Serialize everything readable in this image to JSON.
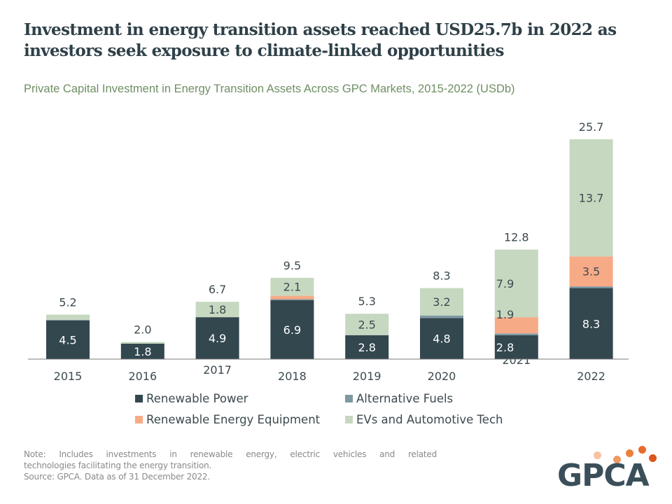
{
  "header": {
    "title": "Investment in energy transition assets reached USD25.7b in 2022 as investors seek exposure to climate-linked opportunities",
    "subtitle": "Private Capital Investment in Energy Transition Assets Across GPC Markets, 2015-2022 (USDb)"
  },
  "chart_data": {
    "type": "bar",
    "stacked": true,
    "title": "Private Capital Investment in Energy Transition Assets Across GPC Markets, 2015-2022 (USDb)",
    "xlabel": "",
    "ylabel": "USDb",
    "ylim": [
      0,
      26
    ],
    "grid": false,
    "legend_position": "bottom",
    "categories": [
      "2015",
      "2016",
      "2017",
      "2018",
      "2019",
      "2020",
      "2021",
      "2022"
    ],
    "series": [
      {
        "name": "Renewable Power",
        "color": "#33474f",
        "values": [
          4.5,
          1.8,
          4.9,
          6.9,
          2.8,
          4.8,
          2.8,
          8.3
        ],
        "labels": [
          "4.5",
          "1.8",
          "4.9",
          "6.9",
          "2.8",
          "4.8",
          "2.8",
          "8.3"
        ]
      },
      {
        "name": "Alternative Fuels",
        "color": "#7e98a3",
        "values": [
          0.1,
          0.0,
          0.0,
          0.1,
          0.0,
          0.3,
          0.2,
          0.2
        ],
        "labels": [
          "",
          "",
          "",
          "",
          "",
          "",
          "",
          ""
        ]
      },
      {
        "name": "Renewable Energy Equipment",
        "color": "#f7aa86",
        "values": [
          0.0,
          0.0,
          0.0,
          0.4,
          0.0,
          0.0,
          1.9,
          3.5
        ],
        "labels": [
          "",
          "",
          "",
          "",
          "",
          "",
          "1.9",
          "3.5"
        ]
      },
      {
        "name": "EVs and Automotive Tech",
        "color": "#c6d8c0",
        "values": [
          0.6,
          0.2,
          1.8,
          2.1,
          2.5,
          3.2,
          7.9,
          13.7
        ],
        "labels": [
          "",
          "",
          "1.8",
          "2.1",
          "2.5",
          "3.2",
          "7.9",
          "13.7"
        ]
      }
    ],
    "totals": [
      "5.2",
      "2.0",
      "6.7",
      "9.5",
      "5.3",
      "8.3",
      "12.8",
      "25.7"
    ]
  },
  "legend": [
    {
      "label": "Renewable Power",
      "color": "#33474f"
    },
    {
      "label": "Alternative Fuels",
      "color": "#7e98a3"
    },
    {
      "label": "Renewable Energy Equipment",
      "color": "#f7aa86"
    },
    {
      "label": "EVs and Automotive Tech",
      "color": "#c6d8c0"
    }
  ],
  "footer": {
    "note_line1": "Note: Includes investments in renewable energy, electric vehicles and related",
    "note_line2": "technologies facilitating the energy transition.",
    "source": "Source: GPCA. Data as of 31 December 2022."
  },
  "logo": {
    "text": "GPCA",
    "dot_colors": [
      "#f7c2a2",
      "#f09a62",
      "#ec7f3d",
      "#e86a2c",
      "#d9561f"
    ]
  }
}
